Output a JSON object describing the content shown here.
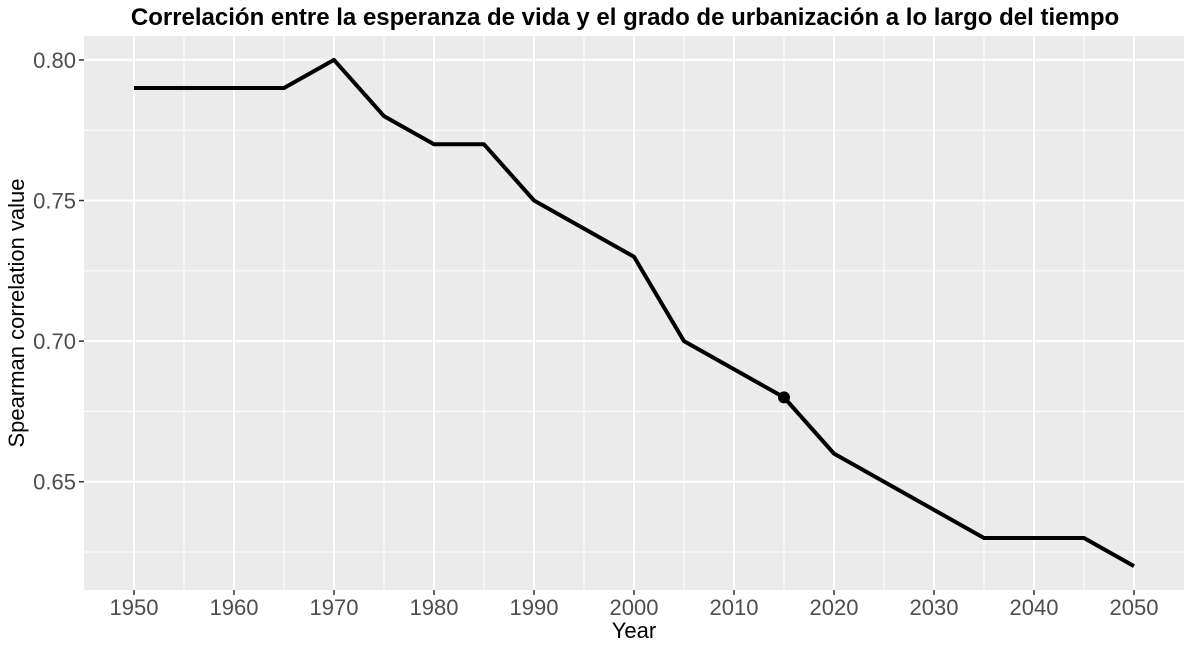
{
  "chart_data": {
    "type": "line",
    "title": "Correlación entre la esperanza de vida y el grado de urbanización a lo largo del tiempo",
    "xlabel": "Year",
    "ylabel": "Spearman correlation value",
    "x": [
      1950,
      1955,
      1960,
      1965,
      1970,
      1975,
      1980,
      1985,
      1990,
      1995,
      2000,
      2005,
      2010,
      2015,
      2020,
      2025,
      2030,
      2035,
      2040,
      2045,
      2050
    ],
    "series": [
      {
        "values": [
          0.79,
          0.79,
          0.79,
          0.79,
          0.8,
          0.78,
          0.77,
          0.77,
          0.75,
          0.74,
          0.73,
          0.7,
          0.69,
          0.68,
          0.66,
          0.65,
          0.64,
          0.63,
          0.63,
          0.63,
          0.62
        ]
      }
    ],
    "highlight": {
      "x": 2015,
      "y": 0.68
    },
    "xlim": [
      1945,
      2055
    ],
    "ylim": [
      0.6115,
      0.8085
    ],
    "x_ticks": [
      1950,
      1960,
      1970,
      1980,
      1990,
      2000,
      2010,
      2020,
      2030,
      2040,
      2050
    ],
    "x_tick_labels": [
      "1950",
      "1960",
      "1970",
      "1980",
      "1990",
      "2000",
      "2010",
      "2020",
      "2030",
      "2040",
      "2050"
    ],
    "y_ticks": [
      0.65,
      0.7,
      0.75,
      0.8
    ],
    "y_tick_labels": [
      "0.65",
      "0.70",
      "0.75",
      "0.80"
    ],
    "grid": true,
    "legend": "none",
    "colors": {
      "panel": "#ebebeb",
      "grid": "#ffffff",
      "line": "#000000",
      "tick_text": "#4d4d4d"
    }
  }
}
